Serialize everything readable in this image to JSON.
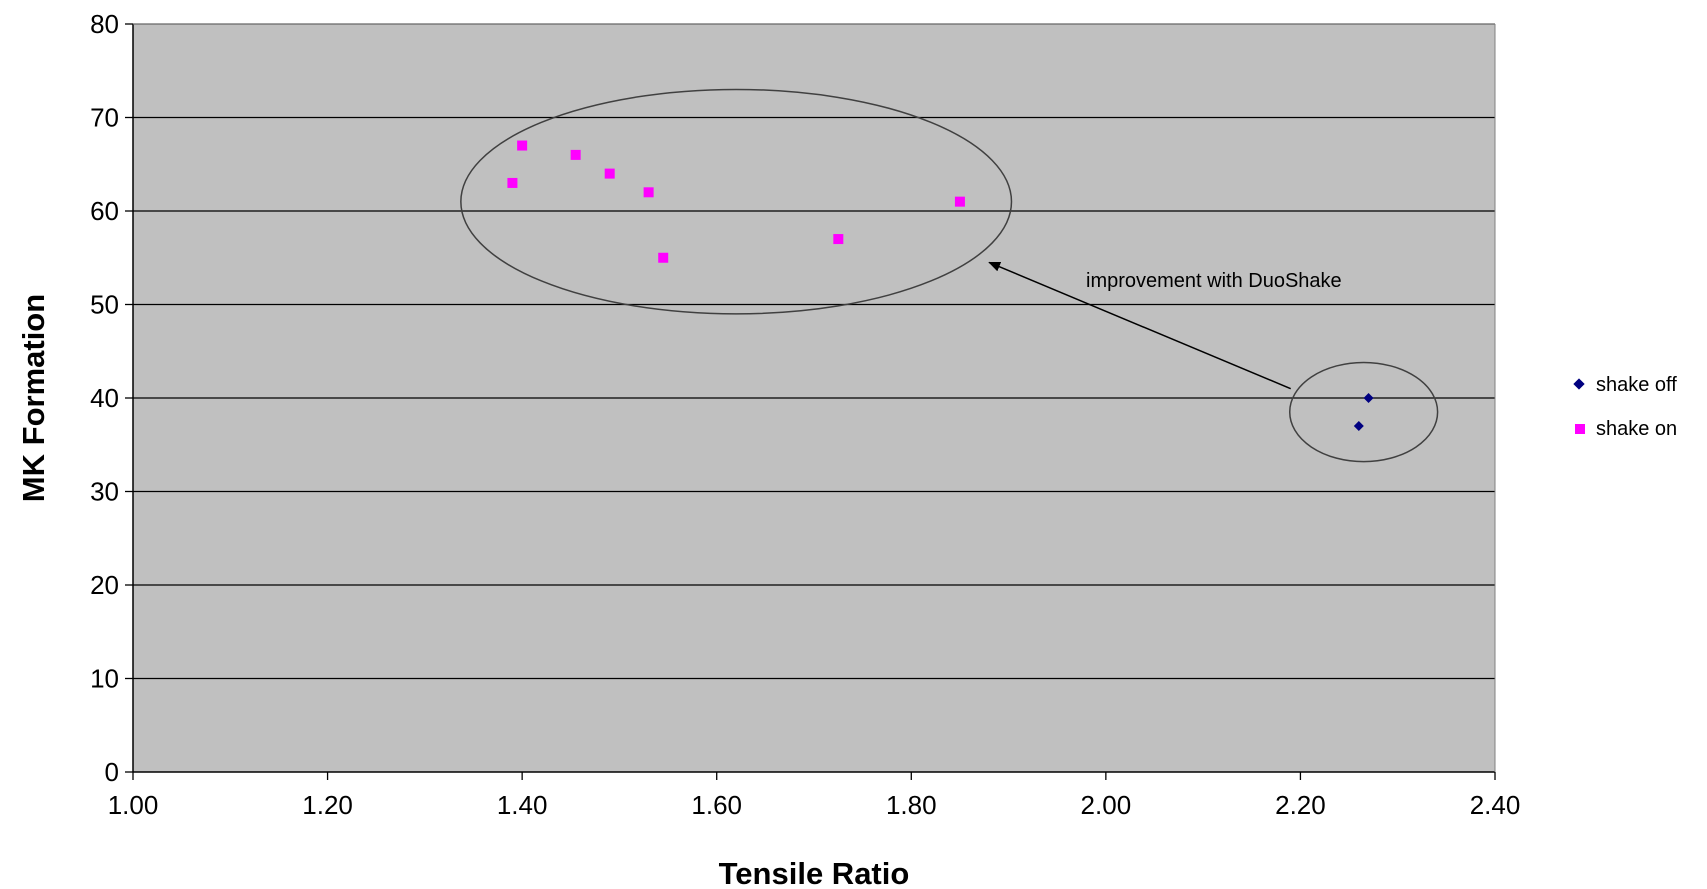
{
  "chart_data": {
    "type": "scatter",
    "title": "",
    "xlabel": "Tensile Ratio",
    "ylabel": "MK Formation",
    "xlim": [
      1.0,
      2.4
    ],
    "ylim": [
      0,
      80
    ],
    "x_ticks": [
      "1.00",
      "1.20",
      "1.40",
      "1.60",
      "1.80",
      "2.00",
      "2.20",
      "2.40"
    ],
    "y_ticks": [
      "0",
      "10",
      "20",
      "30",
      "40",
      "50",
      "60",
      "70",
      "80"
    ],
    "grid": "horizontal",
    "plot_background": "#c0c0c0",
    "legend_position": "right",
    "series": [
      {
        "name": "shake off",
        "marker": "diamond",
        "color": "#000080",
        "points": [
          [
            2.27,
            40
          ],
          [
            2.26,
            37
          ]
        ]
      },
      {
        "name": "shake on",
        "marker": "square",
        "color": "#ff00ff",
        "points": [
          [
            1.39,
            63
          ],
          [
            1.4,
            67
          ],
          [
            1.455,
            66
          ],
          [
            1.49,
            64
          ],
          [
            1.53,
            62
          ],
          [
            1.545,
            55
          ],
          [
            1.725,
            57
          ],
          [
            1.85,
            61
          ]
        ]
      }
    ],
    "annotations": {
      "text": "improvement with DuoShake",
      "arrow_from": [
        2.19,
        41
      ],
      "arrow_to": [
        1.88,
        54.5
      ],
      "ellipses": [
        {
          "cx": 1.62,
          "cy": 61,
          "rx": 0.283,
          "ry": 12
        },
        {
          "cx": 2.265,
          "cy": 38.5,
          "rx": 0.076,
          "ry": 5.3
        }
      ]
    }
  }
}
